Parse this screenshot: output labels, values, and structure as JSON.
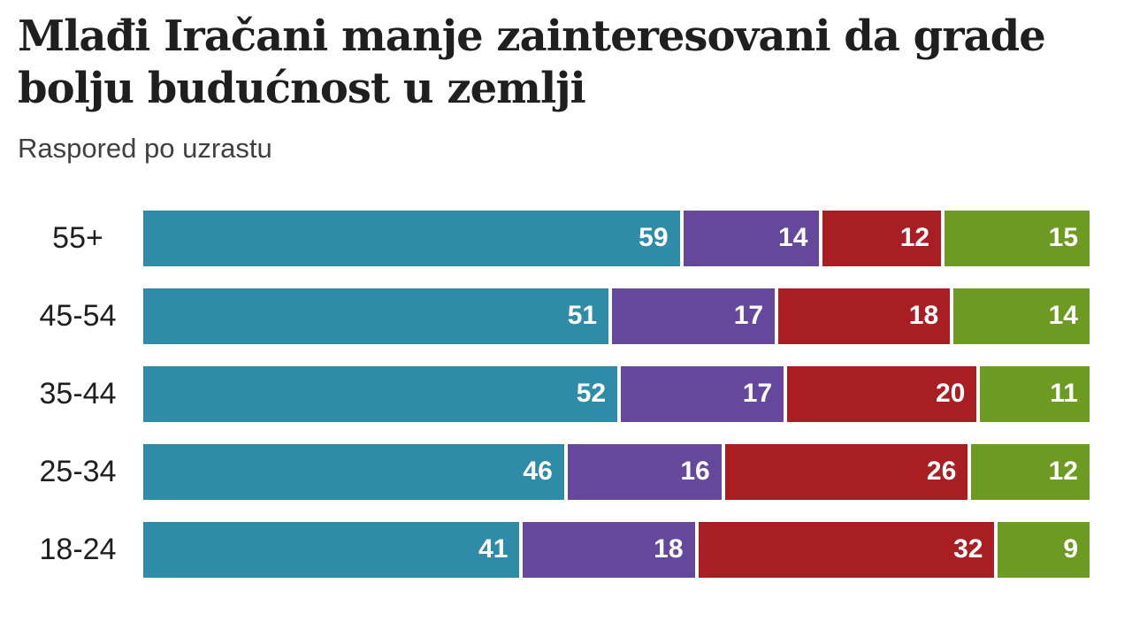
{
  "header": {
    "title": "Mlađi Iračani manje zainteresovani da grade\nbolju budućnost u zemlji",
    "subtitle": "Raspored po uzrastu"
  },
  "colors": {
    "background": "#ffffff",
    "title_text": "#1f1f1f",
    "subtitle_text": "#404040",
    "category_label_text": "#1f1f1f",
    "value_label_text": "#ffffff",
    "segment_teal": "#2f8ca8",
    "segment_purple": "#65479b",
    "segment_red": "#a91e23",
    "segment_green": "#6c9a23"
  },
  "chart_data": {
    "type": "bar",
    "variant": "horizontal-stacked",
    "title": "Mlađi Iračani manje zainteresovani da grade bolju budućnost u zemlji",
    "subtitle": "Raspored po uzrastu",
    "categories": [
      "55+",
      "45-54",
      "35-44",
      "25-34",
      "18-24"
    ],
    "series": [
      {
        "name": "teal-segment",
        "color": "#2f8ca8",
        "values": [
          59,
          51,
          52,
          46,
          41
        ]
      },
      {
        "name": "purple-segment",
        "color": "#65479b",
        "values": [
          14,
          17,
          17,
          16,
          18
        ]
      },
      {
        "name": "red-segment",
        "color": "#a91e23",
        "values": [
          12,
          18,
          20,
          26,
          32
        ]
      },
      {
        "name": "green-segment",
        "color": "#6c9a23",
        "values": [
          15,
          14,
          11,
          12,
          9
        ]
      }
    ],
    "xlim": [
      0,
      100
    ],
    "row_total": 100,
    "value_labels_shown": true,
    "legend": "none",
    "grid": "off"
  }
}
